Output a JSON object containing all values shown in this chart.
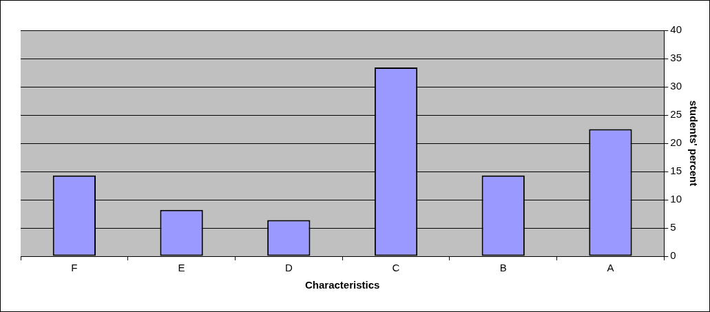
{
  "chart_data": {
    "type": "bar",
    "xlabel": "Characteristics",
    "ylabel": "students' percent",
    "categories": [
      "F",
      "E",
      "D",
      "C",
      "B",
      "A"
    ],
    "values": [
      14.3,
      8.2,
      6.4,
      33.4,
      14.3,
      22.5
    ],
    "color": "#9999ff",
    "ylim": [
      0,
      40
    ],
    "yticks": [
      0,
      5,
      10,
      15,
      20,
      25,
      30,
      35,
      40
    ],
    "grid": "y",
    "legend": false
  }
}
